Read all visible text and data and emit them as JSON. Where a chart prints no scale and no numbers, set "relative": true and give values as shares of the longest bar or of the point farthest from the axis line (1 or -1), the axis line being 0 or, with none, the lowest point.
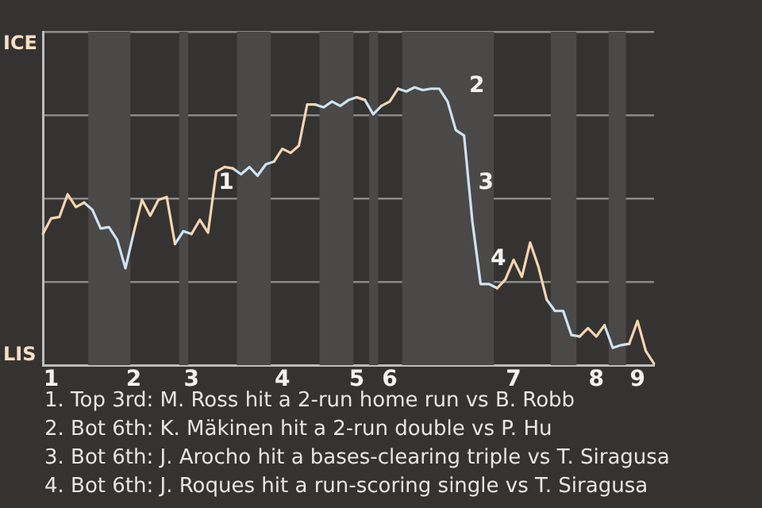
{
  "chart_data": {
    "type": "line",
    "relative": true,
    "categories": [
      null,
      "1",
      null,
      null,
      null,
      null,
      null,
      null,
      null,
      null,
      null,
      "2",
      null,
      null,
      null,
      null,
      null,
      null,
      "3",
      null,
      null,
      null,
      null,
      null,
      null,
      null,
      null,
      null,
      null,
      "4",
      null,
      null,
      null,
      null,
      null,
      null,
      null,
      null,
      "5",
      null,
      null,
      null,
      "6",
      null,
      null,
      null,
      null,
      null,
      null,
      null,
      null,
      null,
      null,
      null,
      null,
      null,
      null,
      "7",
      null,
      null,
      null,
      null,
      null,
      null,
      null,
      null,
      null,
      "8",
      null,
      null,
      null,
      null,
      "9",
      null,
      null
    ],
    "series": [
      {
        "color": "#f5d5b0",
        "values": [
          0.472,
          0.528,
          0.533,
          0.615,
          0.569,
          0.585,
          null,
          null,
          null,
          null,
          null,
          0.477,
          0.595,
          0.538,
          0.595,
          0.605,
          0.436,
          null,
          0.472,
          0.523,
          0.477,
          0.697,
          0.713,
          0.708,
          null,
          null,
          null,
          null,
          0.733,
          0.779,
          0.764,
          0.79,
          0.938,
          0.938,
          null,
          null,
          null,
          null,
          0.964,
          0.954,
          null,
          0.933,
          0.949,
          0.995,
          null,
          null,
          null,
          null,
          null,
          null,
          null,
          null,
          null,
          null,
          null,
          0.277,
          0.308,
          0.379,
          0.318,
          0.441,
          0.354,
          0.236,
          null,
          null,
          null,
          0.103,
          0.133,
          0.103,
          0.144,
          null,
          null,
          0.077,
          0.159,
          0.051,
          0.005
        ]
      },
      {
        "color": "#cfe3f2",
        "values": [
          null,
          null,
          null,
          null,
          null,
          0.585,
          0.559,
          0.492,
          0.497,
          0.451,
          0.349,
          0.477,
          null,
          null,
          null,
          null,
          0.436,
          0.482,
          0.472,
          null,
          null,
          null,
          null,
          0.708,
          0.687,
          0.713,
          0.682,
          0.723,
          0.733,
          null,
          null,
          null,
          null,
          0.938,
          0.928,
          0.949,
          0.933,
          0.954,
          0.964,
          0.954,
          0.903,
          0.933,
          null,
          0.995,
          0.985,
          1,
          0.99,
          0.995,
          0.995,
          0.949,
          0.846,
          0.826,
          0.518,
          0.292,
          0.292,
          0.277,
          null,
          null,
          null,
          null,
          null,
          0.236,
          0.195,
          0.195,
          0.108,
          0.103,
          null,
          null,
          0.144,
          0.062,
          0.072,
          0.077,
          null,
          null,
          null
        ]
      }
    ],
    "grid": "y",
    "legend": false,
    "marker": "none",
    "line_style": "solid",
    "annotations": [
      "ICE",
      "LIS",
      "1",
      "2",
      "3",
      "4",
      "1. Top 3rd: M. Ross hit a 2-run home run vs B. Robb",
      "2. Bot 6th: K. Mäkinen hit a 2-run double vs P. Hu",
      "3. Bot 6th: J. Arocho hit a bases-clearing triple vs T. Siragusa",
      "4. Bot 6th: J. Roques hit a run-scoring single vs T. Siragusa"
    ]
  }
}
